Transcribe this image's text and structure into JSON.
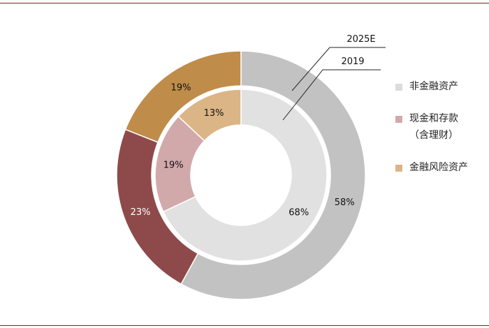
{
  "chart_data": {
    "type": "donut",
    "legend_position": "right",
    "categories": [
      "非金融资产",
      "现金和存款（含理财）",
      "金融风险资产"
    ],
    "colors": {
      "outer": [
        "#c2c2c2",
        "#8e4a4a",
        "#bf8c4a"
      ],
      "inner": [
        "#e1e1e1",
        "#d2a9ab",
        "#dbb586"
      ]
    },
    "series": [
      {
        "name": "2025E",
        "ring": "outer",
        "values": [
          58,
          23,
          19
        ],
        "labels": [
          "58%",
          "23%",
          "19%"
        ]
      },
      {
        "name": "2019",
        "ring": "inner",
        "values": [
          68,
          19,
          13
        ],
        "labels": [
          "68%",
          "19%",
          "13%"
        ]
      }
    ]
  },
  "legend": {
    "items": [
      {
        "line1": "非金融资产",
        "line2": "",
        "color": "#dcdcdc"
      },
      {
        "line1": "现金和存款",
        "line2": "（含理财）",
        "color": "#d2a9ab"
      },
      {
        "line1": "金融风险资产",
        "line2": "",
        "color": "#dbb586"
      }
    ]
  }
}
